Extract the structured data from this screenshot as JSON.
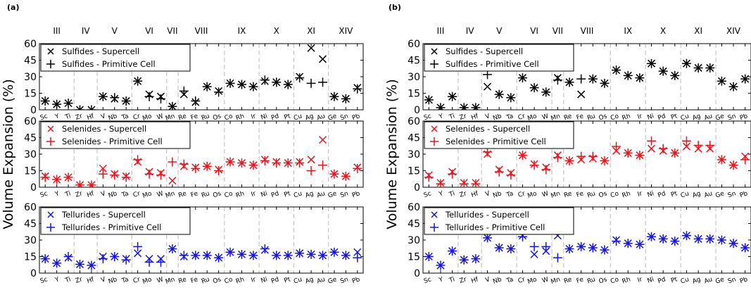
{
  "chart_data": [
    {
      "panel_label": "(a)",
      "type": "scatter",
      "ylabel": "Volume Expansion (%)",
      "groups": [
        "III",
        "IV",
        "V",
        "VI",
        "VII",
        "VIII",
        "IX",
        "X",
        "XI",
        "XIV"
      ],
      "categories": [
        "Sc",
        "Y",
        "Ti",
        "Zr",
        "Hf",
        "V",
        "Nb",
        "Ta",
        "Cr",
        "Mo",
        "W",
        "Mn",
        "Re",
        "Fe",
        "Ru",
        "Os",
        "Co",
        "Rh",
        "Ir",
        "Ni",
        "Pd",
        "Pt",
        "Cu",
        "Ag",
        "Au",
        "Ge",
        "Sn",
        "Pb"
      ],
      "subplots": [
        {
          "color": "#000000",
          "ylim": [
            0,
            60
          ],
          "yticks": [
            0,
            15,
            30,
            45,
            60
          ],
          "series": [
            {
              "name": "Sulfides - Supercell",
              "marker": "x",
              "values": [
                8,
                5,
                6,
                0,
                0,
                12,
                10,
                8,
                26,
                14,
                12,
                3,
                14,
                7,
                21,
                17,
                24,
                23,
                21,
                26,
                25,
                23,
                30,
                56,
                46,
                12,
                10,
                20
              ]
            },
            {
              "name": "Sulfides - Primitive Cell",
              "marker": "+",
              "values": [
                8,
                5,
                6,
                0,
                0,
                12,
                11,
                8,
                26,
                12,
                10,
                3,
                17,
                8,
                21,
                16,
                24,
                23,
                21,
                27,
                25,
                23,
                29,
                24,
                25,
                12,
                10,
                19
              ]
            }
          ]
        },
        {
          "color": "#e8141b",
          "ylim": [
            0,
            60
          ],
          "yticks": [
            0,
            15,
            30,
            45,
            60
          ],
          "series": [
            {
              "name": "Selenides - Supercell",
              "marker": "x",
              "values": [
                10,
                7,
                9,
                2,
                2,
                17,
                12,
                10,
                23,
                14,
                13,
                6,
                19,
                18,
                19,
                16,
                23,
                22,
                20,
                25,
                23,
                22,
                23,
                25,
                43,
                12,
                10,
                18
              ]
            },
            {
              "name": "Selenides - Primitive Cell",
              "marker": "+",
              "values": [
                9,
                7,
                9,
                2,
                2,
                12,
                11,
                9,
                25,
                12,
                11,
                23,
                21,
                17,
                19,
                15,
                23,
                22,
                20,
                24,
                22,
                22,
                22,
                15,
                20,
                12,
                10,
                17
              ]
            }
          ]
        },
        {
          "color": "#1414e0",
          "ylim": [
            0,
            60
          ],
          "yticks": [
            0,
            15,
            30,
            45,
            60
          ],
          "series": [
            {
              "name": "Tellurides - Supercell",
              "marker": "x",
              "values": [
                13,
                9,
                14,
                8,
                7,
                15,
                15,
                13,
                18,
                13,
                13,
                22,
                15,
                16,
                16,
                14,
                19,
                17,
                16,
                21,
                16,
                16,
                18,
                17,
                16,
                19,
                16,
                19
              ]
            },
            {
              "name": "Tellurides - Primitive Cell",
              "marker": "+",
              "values": [
                13,
                9,
                15,
                8,
                7,
                13,
                15,
                12,
                24,
                10,
                10,
                22,
                16,
                16,
                16,
                14,
                19,
                17,
                16,
                22,
                16,
                16,
                18,
                17,
                16,
                19,
                16,
                14
              ]
            }
          ]
        }
      ]
    },
    {
      "panel_label": "(b)",
      "type": "scatter",
      "ylabel": "Volume Expansion (%)",
      "groups": [
        "III",
        "IV",
        "V",
        "VI",
        "VII",
        "VIII",
        "IX",
        "X",
        "XI",
        "XIV"
      ],
      "categories": [
        "Sc",
        "Y",
        "Ti",
        "Zr",
        "Hf",
        "V",
        "Nb",
        "Ta",
        "Cr",
        "Mo",
        "W",
        "Mn",
        "Re",
        "Fe",
        "Ru",
        "Os",
        "Co",
        "Rh",
        "Ir",
        "Ni",
        "Pd",
        "Pt",
        "Cu",
        "Ag",
        "Au",
        "Ge",
        "Sn",
        "Pb"
      ],
      "subplots": [
        {
          "color": "#000000",
          "ylim": [
            0,
            60
          ],
          "yticks": [
            0,
            15,
            30,
            45,
            60
          ],
          "series": [
            {
              "name": "Sulfides - Supercell",
              "marker": "x",
              "values": [
                9,
                2,
                12,
                2,
                2,
                21,
                14,
                11,
                29,
                20,
                16,
                29,
                25,
                14,
                28,
                24,
                36,
                31,
                29,
                42,
                35,
                31,
                42,
                38,
                38,
                26,
                21,
                28
              ]
            },
            {
              "name": "Sulfides - Primitive Cell",
              "marker": "+",
              "values": [
                9,
                2,
                12,
                2,
                2,
                32,
                14,
                11,
                29,
                20,
                16,
                27,
                25,
                28,
                28,
                24,
                36,
                31,
                29,
                42,
                35,
                31,
                42,
                38,
                38,
                26,
                21,
                28
              ]
            }
          ]
        },
        {
          "color": "#e8141b",
          "ylim": [
            0,
            60
          ],
          "yticks": [
            0,
            15,
            30,
            45,
            60
          ],
          "series": [
            {
              "name": "Selenides - Supercell",
              "marker": "x",
              "values": [
                11,
                4,
                14,
                4,
                4,
                30,
                16,
                13,
                29,
                21,
                18,
                29,
                24,
                25,
                26,
                24,
                33,
                31,
                29,
                35,
                33,
                31,
                37,
                35,
                35,
                25,
                20,
                28
              ]
            },
            {
              "name": "Selenides - Primitive Cell",
              "marker": "+",
              "values": [
                9,
                3,
                12,
                3,
                3,
                32,
                14,
                11,
                29,
                20,
                16,
                27,
                24,
                28,
                28,
                24,
                37,
                31,
                29,
                42,
                35,
                31,
                42,
                38,
                38,
                25,
                20,
                25
              ]
            }
          ]
        },
        {
          "color": "#1414e0",
          "ylim": [
            0,
            60
          ],
          "yticks": [
            0,
            15,
            30,
            45,
            60
          ],
          "series": [
            {
              "name": "Tellurides - Supercell",
              "marker": "x",
              "values": [
                15,
                7,
                20,
                12,
                13,
                32,
                23,
                22,
                34,
                17,
                20,
                34,
                22,
                24,
                23,
                21,
                30,
                27,
                26,
                33,
                31,
                29,
                34,
                31,
                31,
                30,
                27,
                23
              ]
            },
            {
              "name": "Tellurides - Primitive Cell",
              "marker": "+",
              "values": [
                15,
                7,
                20,
                12,
                13,
                32,
                23,
                22,
                33,
                24,
                24,
                14,
                22,
                24,
                23,
                21,
                29,
                27,
                26,
                33,
                31,
                29,
                34,
                31,
                31,
                30,
                27,
                23
              ]
            }
          ]
        }
      ]
    }
  ]
}
